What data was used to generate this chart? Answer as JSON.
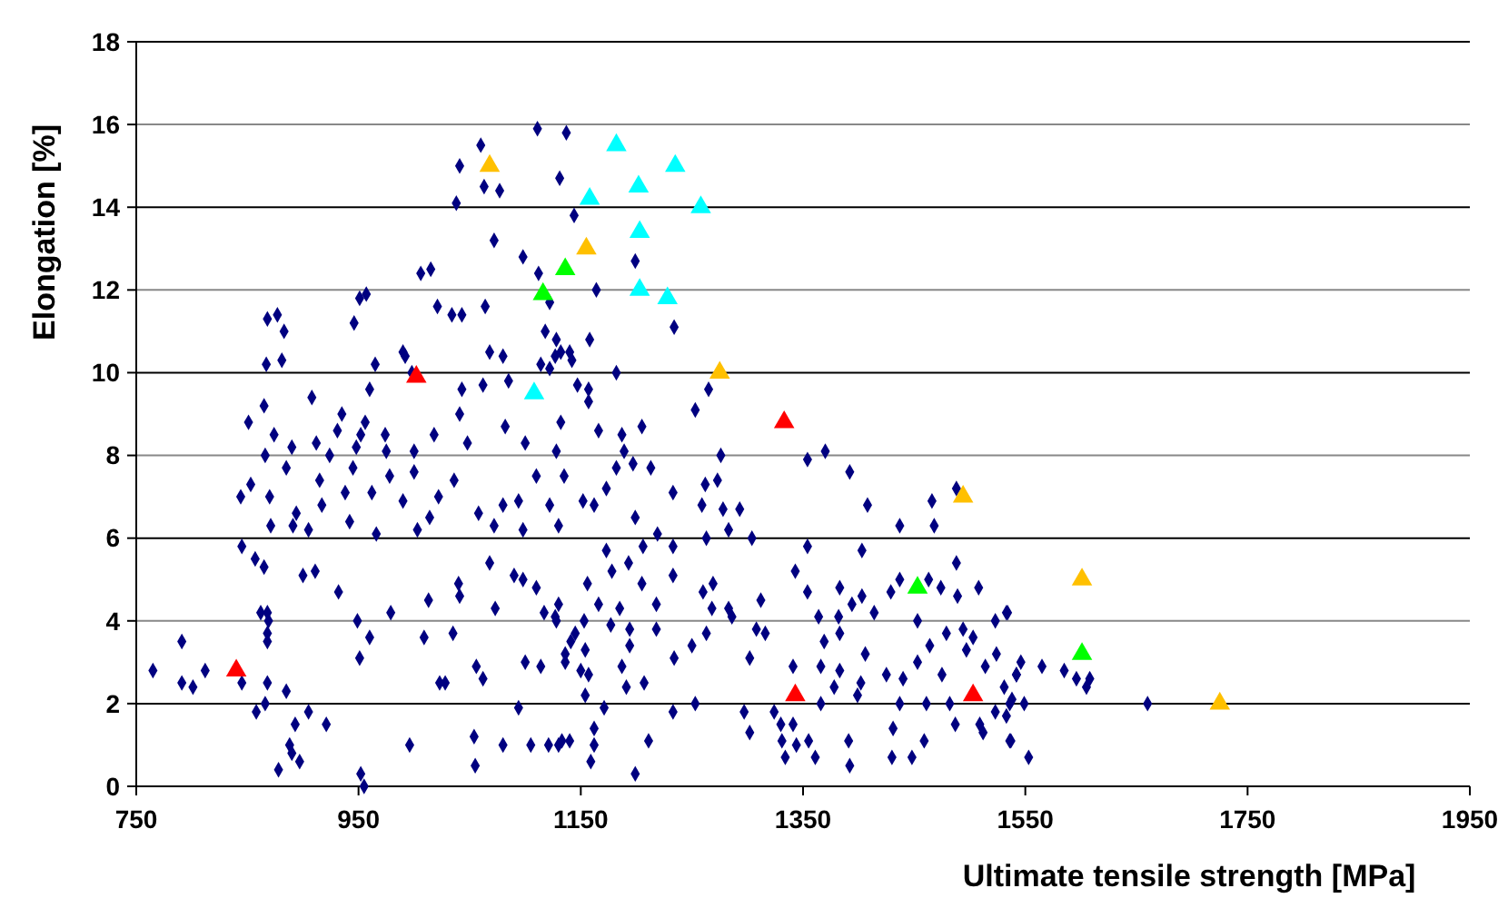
{
  "chart_data": {
    "type": "scatter",
    "xlabel": "Ultimate tensile strength [MPa]",
    "ylabel": "Elongation [%]",
    "xlim": [
      750,
      1950
    ],
    "xticks": [
      750,
      950,
      1150,
      1350,
      1550,
      1750,
      1950
    ],
    "ylim": [
      0,
      18
    ],
    "yticks": [
      0,
      2,
      4,
      6,
      8,
      10,
      12,
      14,
      16,
      18
    ],
    "grid": "y",
    "series": [
      {
        "color": "#000080",
        "marker": "diamond",
        "x": [
          765,
          791,
          791,
          801,
          812,
          845,
          858,
          866,
          868,
          885,
          878,
          888,
          890,
          893,
          897,
          905,
          921,
          996,
          1023,
          1054,
          1080,
          1094,
          1105,
          1130,
          1140,
          1055,
          1114,
          1100,
          1136,
          952,
          955,
          845,
          857,
          862,
          868,
          865,
          868,
          868,
          869,
          900,
          911,
          932,
          949,
          951,
          960,
          979,
          1013,
          1009,
          1035,
          1040,
          1041,
          1068,
          1073,
          1090,
          1098,
          1117,
          1128,
          1110,
          1062,
          1056,
          1028,
          844,
          853,
          851,
          865,
          866,
          870,
          871,
          874,
          885,
          890,
          891,
          894,
          905,
          908,
          912,
          915,
          917,
          924,
          931,
          935,
          938,
          942,
          945,
          948,
          952,
          956,
          962,
          966,
          974,
          975,
          978,
          990,
          1000,
          1000,
          1003,
          1014,
          1018,
          1022,
          1036,
          1041,
          1048,
          1058,
          1072,
          1080,
          1082,
          1094,
          1098,
          1100,
          1110,
          1122,
          1128,
          1135,
          1130,
          877,
          883,
          868,
          867,
          881,
          951,
          957,
          965,
          946,
          960,
          990,
          992,
          998,
          1006,
          1015,
          1021,
          1034,
          1043,
          1064,
          1068,
          1080,
          1085,
          1062,
          1043,
          1114,
          1118,
          1122,
          1127,
          1098,
          1112,
          1122,
          1140,
          1038,
          1041,
          1060,
          1063,
          1077,
          1072,
          1111,
          1137,
          1131,
          1144,
          1199,
          1164,
          1234,
          1128,
          1158,
          1132,
          1142,
          1182,
          1147,
          1157,
          1265,
          1157,
          1253,
          1132,
          1166,
          1187,
          1205,
          1189,
          1276,
          1354,
          1370,
          1392,
          1197,
          1213,
          1182,
          1262,
          1273,
          1233,
          1173,
          1152,
          1162,
          1259,
          1408,
          1199,
          1278,
          1293,
          1283,
          1219,
          1263,
          1304,
          1233,
          1206,
          1354,
          1403,
          1437,
          1468,
          1466,
          1488,
          1173,
          1178,
          1193,
          1156,
          1205,
          1233,
          1269,
          1343,
          1354,
          1383,
          1429,
          1437,
          1463,
          1474,
          1488,
          1508,
          1489,
          1130,
          1166,
          1185,
          1218,
          1260,
          1268,
          1283,
          1312,
          1394,
          1403,
          1414,
          1364,
          1382,
          1127,
          1153,
          1177,
          1194,
          1218,
          1286,
          1308,
          1316,
          1453,
          1494,
          1503,
          1523,
          1533,
          1145,
          1141,
          1136,
          1154,
          1194,
          1250,
          1263,
          1369,
          1383,
          1406,
          1464,
          1479,
          1497,
          1524,
          1150,
          1187,
          1234,
          1302,
          1341,
          1366,
          1383,
          1425,
          1453,
          1475,
          1514,
          1542,
          1157,
          1191,
          1207,
          1378,
          1402,
          1440,
          1154,
          1171,
          1253,
          1297,
          1324,
          1366,
          1399,
          1437,
          1461,
          1482,
          1523,
          1536,
          1233,
          1330,
          1341,
          1302,
          1344,
          1331,
          1355,
          1361,
          1334,
          1391,
          1392,
          1431,
          1430,
          1448,
          1459,
          1487,
          1509,
          1512,
          1536,
          1162,
          1162,
          1159,
          1133,
          1211,
          1199,
          1121,
          1534,
          1546,
          1542,
          1565,
          1585,
          1596,
          1605,
          1608,
          1531,
          1538,
          1549,
          1660,
          1533,
          1537,
          1553
        ],
        "values": [
          2.8,
          3.5,
          2.5,
          2.4,
          2.8,
          2.5,
          1.8,
          2.0,
          2.5,
          2.3,
          0.4,
          1.0,
          0.8,
          1.5,
          0.6,
          1.8,
          1.5,
          1.0,
          2.5,
          1.2,
          1.0,
          1.9,
          1.0,
          1.0,
          1.1,
          0.5,
          2.9,
          3.0,
          3.0,
          0.3,
          0.0,
          5.8,
          5.5,
          4.2,
          4.2,
          5.3,
          3.7,
          3.5,
          4.0,
          5.1,
          5.2,
          4.7,
          4.0,
          3.1,
          3.6,
          4.2,
          4.5,
          3.6,
          3.7,
          4.9,
          4.6,
          5.4,
          4.3,
          5.1,
          5.0,
          4.2,
          4.0,
          4.8,
          2.6,
          2.9,
          2.5,
          7.0,
          7.3,
          8.8,
          9.2,
          8.0,
          7.0,
          6.3,
          8.5,
          7.7,
          8.2,
          6.3,
          6.6,
          6.2,
          9.4,
          8.3,
          7.4,
          6.8,
          8.0,
          8.6,
          9.0,
          7.1,
          6.4,
          7.7,
          8.2,
          8.5,
          8.8,
          7.1,
          6.1,
          8.5,
          8.1,
          7.5,
          6.9,
          8.1,
          7.6,
          6.2,
          6.5,
          8.5,
          7.0,
          7.4,
          9.0,
          8.3,
          6.6,
          6.3,
          6.8,
          8.7,
          6.9,
          6.2,
          8.3,
          7.5,
          6.8,
          8.1,
          7.5,
          6.3,
          11.4,
          11.0,
          11.3,
          10.2,
          10.3,
          11.8,
          11.9,
          10.2,
          11.2,
          9.6,
          10.5,
          10.4,
          10.0,
          12.4,
          12.5,
          11.6,
          11.4,
          11.4,
          11.6,
          10.5,
          10.4,
          9.8,
          9.7,
          9.6,
          10.2,
          11.0,
          10.1,
          10.4,
          12.8,
          12.4,
          11.7,
          10.5,
          14.1,
          15.0,
          15.5,
          14.5,
          14.4,
          13.2,
          15.9,
          15.8,
          14.7,
          13.8,
          12.7,
          12.0,
          11.1,
          10.8,
          10.8,
          10.5,
          10.3,
          10.0,
          9.7,
          9.6,
          9.6,
          9.3,
          9.1,
          8.8,
          8.6,
          8.5,
          8.7,
          8.1,
          8.0,
          7.9,
          8.1,
          7.6,
          7.8,
          7.7,
          7.7,
          7.3,
          7.4,
          7.1,
          7.2,
          6.9,
          6.8,
          6.8,
          6.8,
          6.5,
          6.7,
          6.7,
          6.2,
          6.1,
          6.0,
          6.0,
          5.8,
          5.8,
          5.8,
          5.7,
          6.3,
          6.3,
          6.9,
          7.2,
          5.7,
          5.2,
          5.4,
          4.9,
          4.9,
          5.1,
          4.9,
          5.2,
          4.7,
          4.8,
          4.7,
          5.0,
          5.0,
          4.8,
          5.4,
          4.8,
          4.6,
          4.4,
          4.4,
          4.3,
          4.4,
          4.7,
          4.3,
          4.3,
          4.5,
          4.4,
          4.6,
          4.2,
          4.1,
          4.1,
          4.1,
          4.0,
          3.9,
          3.8,
          3.8,
          4.1,
          3.8,
          3.7,
          4.0,
          3.8,
          3.6,
          4.0,
          4.2,
          3.7,
          3.5,
          3.2,
          3.3,
          3.4,
          3.4,
          3.7,
          3.5,
          3.7,
          3.2,
          3.4,
          3.7,
          3.3,
          3.2,
          2.8,
          2.9,
          3.1,
          3.1,
          2.9,
          2.9,
          2.8,
          2.7,
          3.0,
          2.7,
          2.9,
          2.7,
          2.7,
          2.4,
          2.5,
          2.4,
          2.5,
          2.6,
          2.2,
          1.9,
          2.0,
          1.8,
          1.8,
          2.0,
          2.2,
          2.0,
          2.0,
          2.0,
          1.8,
          2.0,
          1.8,
          1.5,
          1.5,
          1.3,
          1.0,
          1.1,
          1.1,
          0.7,
          0.7,
          1.1,
          0.5,
          1.4,
          0.7,
          0.7,
          1.1,
          1.5,
          1.5,
          1.3,
          1.1,
          1.4,
          1.0,
          0.6,
          1.1,
          1.1,
          0.3,
          1.0,
          4.2,
          3.0,
          2.7,
          2.9,
          2.8,
          2.6,
          2.4,
          2.6,
          2.4,
          2.1,
          2.0,
          2.0,
          1.7,
          1.1,
          0.7
        ]
      },
      {
        "color": "#ff0000",
        "marker": "triangle",
        "x": [
          840,
          1002,
          1333,
          1343,
          1503
        ],
        "values": [
          2.8,
          9.9,
          8.8,
          2.2,
          2.2
        ]
      },
      {
        "color": "#ffc000",
        "marker": "triangle",
        "x": [
          1068,
          1155,
          1275,
          1494,
          1601,
          1725
        ],
        "values": [
          15.0,
          13.0,
          10.0,
          7.0,
          5.0,
          2.0
        ]
      },
      {
        "color": "#00ff00",
        "marker": "triangle",
        "x": [
          1116,
          1136,
          1453,
          1601
        ],
        "values": [
          11.9,
          12.5,
          4.8,
          3.2
        ]
      },
      {
        "color": "#00ffff",
        "marker": "triangle",
        "x": [
          1108,
          1182,
          1235,
          1202,
          1158,
          1258,
          1203,
          1203,
          1228
        ],
        "values": [
          9.5,
          15.5,
          15.0,
          14.5,
          14.2,
          14.0,
          13.4,
          12.0,
          11.8
        ]
      }
    ]
  }
}
